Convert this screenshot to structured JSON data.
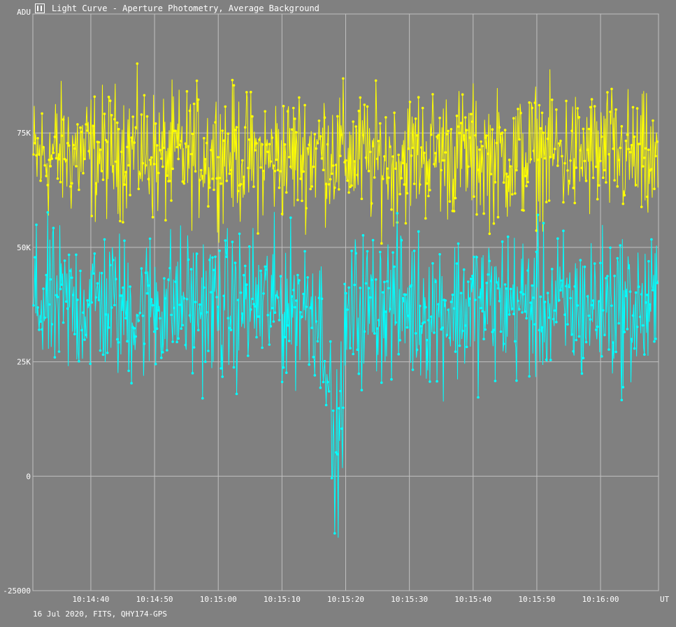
{
  "window": {
    "title": "Light Curve - Aperture Photometry, Average Background",
    "icon": "light-curve-app-icon"
  },
  "footer": "16 Jul 2020, FITS, QHY174-GPS",
  "colors": {
    "background": "#808080",
    "grid": "#c0c0c0",
    "target": "#ffff00",
    "comparison": "#00ffff"
  },
  "chart_data": {
    "type": "line",
    "title": "Light Curve - Aperture Photometry, Average Background",
    "ylabel": "ADU",
    "xlabel": "UT",
    "ylim": [
      -25000,
      101000
    ],
    "xlim": [
      "10:14:30.9",
      "10:16:09.1"
    ],
    "y_ticks": [
      {
        "value": 75000,
        "label": "75K"
      },
      {
        "value": 50000,
        "label": "50K"
      },
      {
        "value": 25000,
        "label": "25K"
      },
      {
        "value": 0,
        "label": "0"
      },
      {
        "value": -25000,
        "label": "-25000"
      }
    ],
    "x_ticks": [
      "10:14:40",
      "10:14:50",
      "10:15:00",
      "10:15:10",
      "10:15:20",
      "10:15:30",
      "10:15:40",
      "10:15:50",
      "10:16:00"
    ],
    "grid": true,
    "series": [
      {
        "color": "#ffff00",
        "description": "noisy ~70000 ADU",
        "x": [
          "10:14:31",
          "10:14:36",
          "10:14:41",
          "10:14:46",
          "10:14:51",
          "10:14:56",
          "10:15:01",
          "10:15:06",
          "10:15:11",
          "10:15:16",
          "10:15:21",
          "10:15:26",
          "10:15:31",
          "10:15:36",
          "10:15:41",
          "10:15:46",
          "10:15:51",
          "10:15:56",
          "10:16:01",
          "10:16:06",
          "10:16:09"
        ],
        "values": [
          69000,
          71000,
          70000,
          72000,
          69500,
          70500,
          71000,
          69000,
          70000,
          71500,
          70000,
          69000,
          70500,
          71000,
          70000,
          69500,
          71000,
          70000,
          70500,
          69000,
          67000
        ]
      },
      {
        "color": "#00ffff",
        "description": "~37000 ADU with dip near 10:15:18",
        "x": [
          "10:14:31",
          "10:14:36",
          "10:14:41",
          "10:14:46",
          "10:14:51",
          "10:14:56",
          "10:15:01",
          "10:15:06",
          "10:15:11",
          "10:15:15",
          "10:15:17",
          "10:15:18",
          "10:15:19",
          "10:15:20",
          "10:15:21",
          "10:15:26",
          "10:15:31",
          "10:15:36",
          "10:15:41",
          "10:15:46",
          "10:15:51",
          "10:15:56",
          "10:16:01",
          "10:16:06",
          "10:16:09"
        ],
        "values": [
          38000,
          37000,
          38500,
          36000,
          38000,
          37500,
          36500,
          38000,
          37000,
          38000,
          30000,
          2000,
          8000,
          30000,
          36000,
          38000,
          37000,
          36500,
          37500,
          38000,
          37000,
          36500,
          37500,
          36000,
          37000
        ]
      }
    ]
  }
}
